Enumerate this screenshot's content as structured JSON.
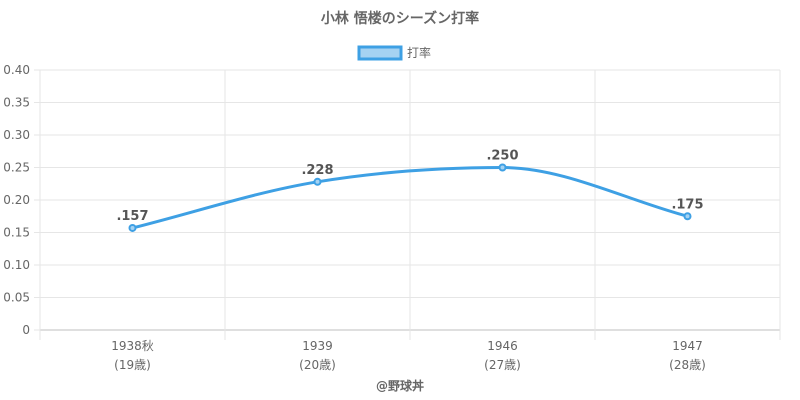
{
  "chart_data": {
    "type": "line",
    "title": "小林 悟楼のシーズン打率",
    "legend": {
      "label": "打率",
      "position": "top"
    },
    "categories": [
      {
        "year": "1938秋",
        "age": "(19歳)"
      },
      {
        "year": "1939",
        "age": "(20歳)"
      },
      {
        "year": "1946",
        "age": "(27歳)"
      },
      {
        "year": "1947",
        "age": "(28歳)"
      }
    ],
    "series": [
      {
        "name": "打率",
        "values": [
          0.157,
          0.228,
          0.25,
          0.175
        ],
        "labels": [
          ".157",
          ".228",
          ".250",
          ".175"
        ]
      }
    ],
    "yticks": [
      "0",
      "0.05",
      "0.10",
      "0.15",
      "0.20",
      "0.25",
      "0.30",
      "0.35",
      "0.40"
    ],
    "ylim": [
      0,
      0.4
    ],
    "grid": true,
    "colors": {
      "line": "#3ea0e4",
      "legend_fill": "#a5d2f2",
      "grid": "#e6e6e6"
    }
  },
  "credit": "@野球丼"
}
